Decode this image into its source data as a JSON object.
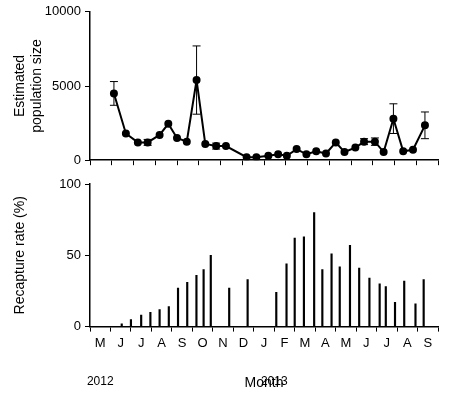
{
  "chart_data": [
    {
      "type": "line",
      "y_label": [
        "Estimated",
        "population size"
      ],
      "x": [
        1.1,
        1.65,
        2.2,
        2.65,
        3.2,
        3.6,
        4.0,
        4.45,
        4.9,
        5.3,
        5.8,
        6.25,
        7.2,
        7.65,
        8.2,
        8.65,
        9.05,
        9.5,
        9.95,
        10.4,
        10.85,
        11.3,
        11.7,
        12.2,
        12.6,
        13.1,
        13.5,
        13.95,
        14.4,
        14.85,
        15.4
      ],
      "values": [
        4500,
        1800,
        1200,
        1200,
        1700,
        2450,
        1500,
        1250,
        5400,
        1100,
        950,
        950,
        200,
        200,
        300,
        400,
        300,
        750,
        400,
        600,
        450,
        1200,
        550,
        850,
        1250,
        1250,
        550,
        2800,
        600,
        700,
        2350
      ],
      "errors": [
        800,
        null,
        null,
        200,
        null,
        null,
        null,
        null,
        2300,
        null,
        200,
        null,
        null,
        null,
        null,
        null,
        null,
        null,
        null,
        null,
        null,
        null,
        null,
        null,
        200,
        250,
        null,
        1000,
        null,
        null,
        900
      ],
      "xlim": [
        0,
        16
      ],
      "xticks": [
        {
          "value": 0,
          "label": "M"
        },
        {
          "value": 1,
          "label": "J"
        },
        {
          "value": 2,
          "label": "J"
        },
        {
          "value": 3,
          "label": "A"
        },
        {
          "value": 4,
          "label": "S"
        },
        {
          "value": 5,
          "label": "O"
        },
        {
          "value": 6,
          "label": "N"
        },
        {
          "value": 7,
          "label": "D"
        },
        {
          "value": 8,
          "label": "J"
        },
        {
          "value": 9,
          "label": "F"
        },
        {
          "value": 10,
          "label": "M"
        },
        {
          "value": 11,
          "label": "A"
        },
        {
          "value": 12,
          "label": "M"
        },
        {
          "value": 13,
          "label": "J"
        },
        {
          "value": 14,
          "label": "J"
        },
        {
          "value": 15,
          "label": "A"
        },
        {
          "value": 16,
          "label": "S"
        }
      ],
      "ylim": [
        0,
        10000
      ],
      "yticks": [
        0,
        5000,
        10000
      ],
      "tick_labels": "y",
      "grid": false,
      "color": "#000000",
      "marker": "circle",
      "line_style": "solid"
    },
    {
      "type": "bar",
      "x_label": "Month",
      "y_label": "Recapture rate (%)",
      "x": [
        1.05,
        1.5,
        2.0,
        2.45,
        2.9,
        3.35,
        3.8,
        4.25,
        4.7,
        5.05,
        5.4,
        6.3,
        7.2,
        8.6,
        9.1,
        9.5,
        9.95,
        10.45,
        10.85,
        11.3,
        11.7,
        12.2,
        12.65,
        13.15,
        13.65,
        13.95,
        14.4,
        14.85,
        15.4,
        15.8
      ],
      "values": [
        2,
        5,
        8,
        10,
        12,
        14,
        27,
        31,
        36,
        40,
        50,
        27,
        33,
        24,
        44,
        62,
        63,
        80,
        40,
        51,
        42,
        57,
        41,
        34,
        30,
        28,
        17,
        32,
        16,
        33
      ],
      "xlim": [
        0,
        16
      ],
      "xticks": [
        {
          "value": 0,
          "label": "M"
        },
        {
          "value": 1,
          "label": "J"
        },
        {
          "value": 2,
          "label": "J"
        },
        {
          "value": 3,
          "label": "A"
        },
        {
          "value": 4,
          "label": "S"
        },
        {
          "value": 5,
          "label": "O"
        },
        {
          "value": 6,
          "label": "N"
        },
        {
          "value": 7,
          "label": "D"
        },
        {
          "value": 8,
          "label": "J"
        },
        {
          "value": 9,
          "label": "F"
        },
        {
          "value": 10,
          "label": "M"
        },
        {
          "value": 11,
          "label": "A"
        },
        {
          "value": 12,
          "label": "M"
        },
        {
          "value": 13,
          "label": "J"
        },
        {
          "value": 14,
          "label": "J"
        },
        {
          "value": 15,
          "label": "A"
        },
        {
          "value": 16,
          "label": "S"
        }
      ],
      "ylim": [
        0,
        100
      ],
      "yticks": [
        0,
        50,
        100
      ],
      "grid": false,
      "color": "#000000",
      "annotations": [
        {
          "text": "2012",
          "x": 0
        },
        {
          "text": "2013",
          "x": 8.5
        }
      ]
    }
  ]
}
